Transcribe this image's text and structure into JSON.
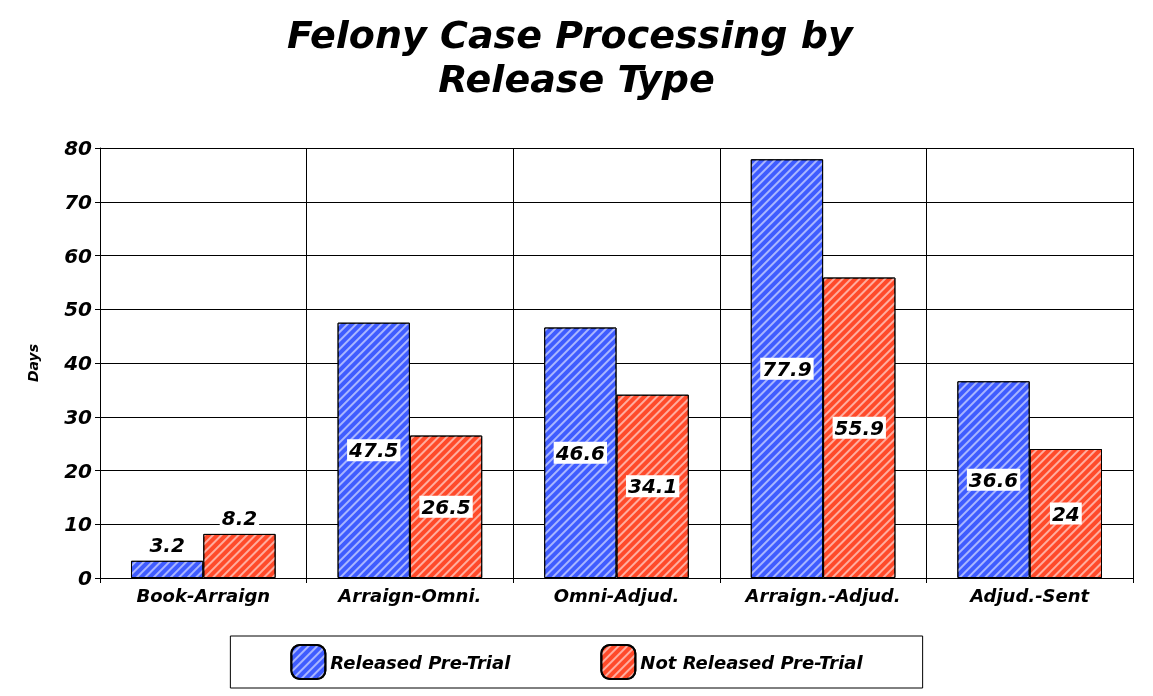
{
  "chart_data": {
    "type": "bar",
    "title": "Felony Case Processing by Release Type",
    "ylabel": "Days",
    "categories": [
      "Book-Arraign",
      "Arraign-Omni.",
      "Omni-Adjud.",
      "Arraign.-Adjud.",
      "Adjud.-Sent"
    ],
    "series": [
      {
        "name": "Released Pre-Trial",
        "color": "#3f5cff",
        "values": [
          3.2,
          47.5,
          46.6,
          77.9,
          36.6
        ]
      },
      {
        "name": "Not Released Pre-Trial",
        "color": "#ff4a2a",
        "values": [
          8.2,
          26.5,
          34.1,
          55.9,
          24
        ]
      }
    ],
    "ylim": [
      0,
      80
    ],
    "yticks": [
      0,
      10,
      20,
      30,
      40,
      50,
      60,
      70,
      80
    ],
    "grid": true,
    "legend": "bottom",
    "data_labels": true
  }
}
